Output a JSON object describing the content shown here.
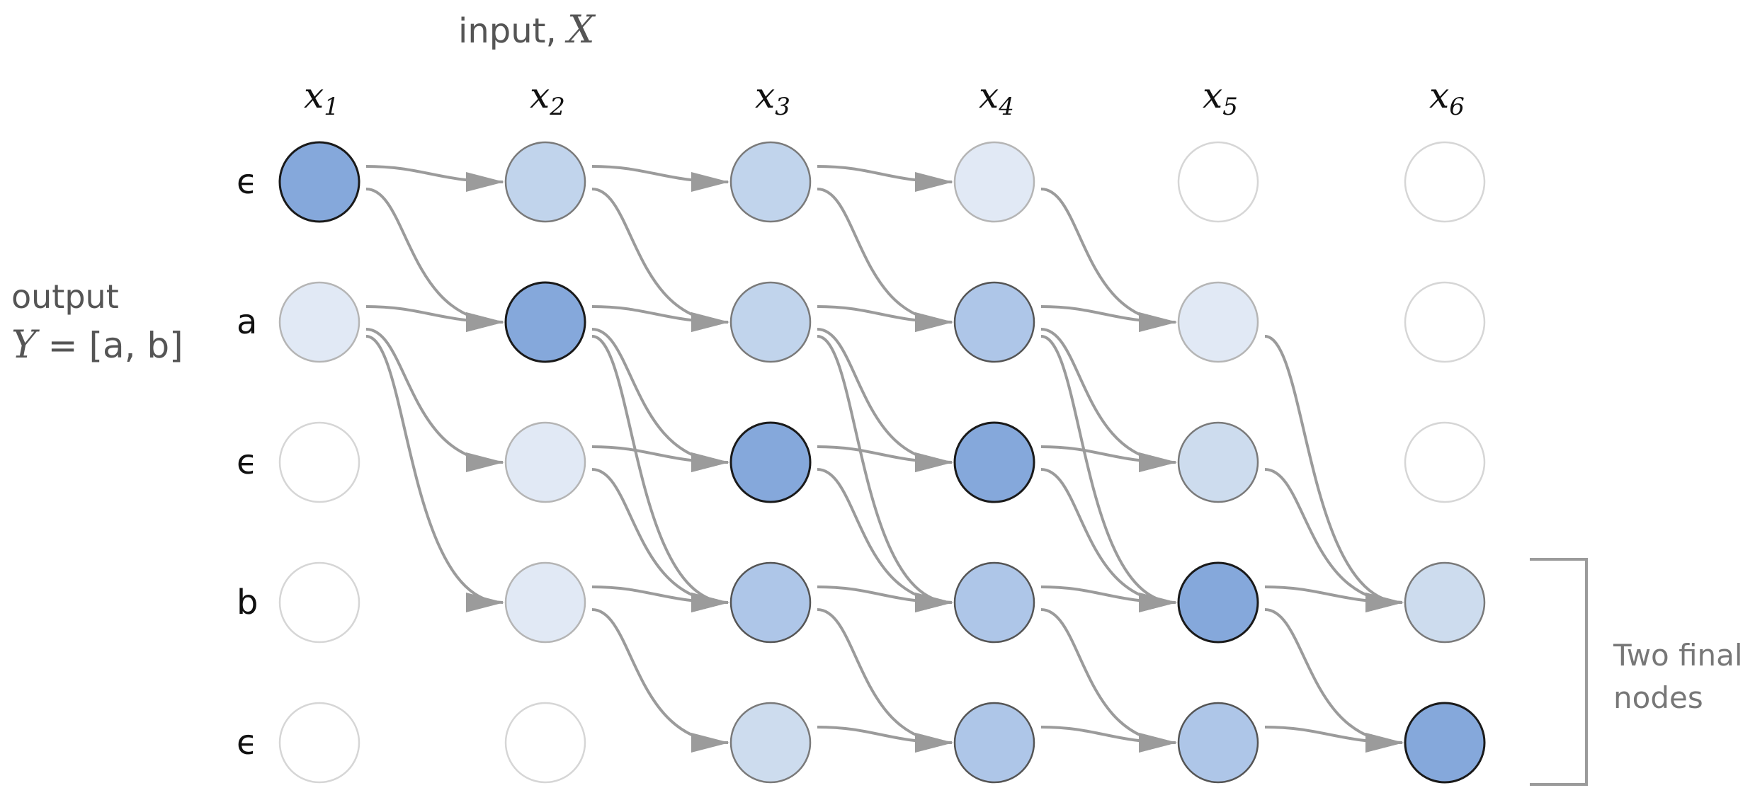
{
  "input_label": {
    "prefix": "input, ",
    "symbol": "X"
  },
  "output_label": {
    "word": "output",
    "symbol": "Y",
    "equals": "= [a, b]"
  },
  "columns": [
    {
      "base": "x",
      "sub": "1"
    },
    {
      "base": "x",
      "sub": "2"
    },
    {
      "base": "x",
      "sub": "3"
    },
    {
      "base": "x",
      "sub": "4"
    },
    {
      "base": "x",
      "sub": "5"
    },
    {
      "base": "x",
      "sub": "6"
    }
  ],
  "rows": [
    "ϵ",
    "a",
    "ϵ",
    "b",
    "ϵ"
  ],
  "final_note": {
    "line1": "Two final",
    "line2": "nodes"
  },
  "colors": {
    "edge": "#9b9b9b",
    "level_0": "#ffffff",
    "level_1": "#e1e9f5",
    "level_2": "#cddcee",
    "level_3": "#c1d4ec",
    "level_4": "#aec6e8",
    "level_5": "#85a8db"
  },
  "node_levels": [
    [
      5,
      3,
      3,
      1,
      0,
      0
    ],
    [
      1,
      5,
      3,
      4,
      1,
      0
    ],
    [
      0,
      1,
      5,
      5,
      2,
      0
    ],
    [
      0,
      1,
      4,
      4,
      5,
      2
    ],
    [
      0,
      0,
      2,
      4,
      4,
      5
    ]
  ],
  "edges": [
    [
      0,
      0,
      0,
      1
    ],
    [
      0,
      0,
      1,
      1
    ],
    [
      0,
      1,
      0,
      2
    ],
    [
      0,
      1,
      1,
      2
    ],
    [
      0,
      2,
      0,
      3
    ],
    [
      0,
      2,
      1,
      3
    ],
    [
      0,
      3,
      1,
      4
    ],
    [
      1,
      0,
      1,
      1
    ],
    [
      1,
      0,
      2,
      1
    ],
    [
      1,
      0,
      3,
      1
    ],
    [
      1,
      1,
      1,
      2
    ],
    [
      1,
      1,
      2,
      2
    ],
    [
      1,
      1,
      3,
      2
    ],
    [
      1,
      2,
      1,
      3
    ],
    [
      1,
      2,
      2,
      3
    ],
    [
      1,
      2,
      3,
      3
    ],
    [
      1,
      3,
      1,
      4
    ],
    [
      1,
      3,
      2,
      4
    ],
    [
      1,
      3,
      3,
      4
    ],
    [
      1,
      4,
      3,
      5
    ],
    [
      2,
      1,
      2,
      2
    ],
    [
      2,
      1,
      3,
      2
    ],
    [
      2,
      2,
      2,
      3
    ],
    [
      2,
      2,
      3,
      3
    ],
    [
      2,
      3,
      2,
      4
    ],
    [
      2,
      3,
      3,
      4
    ],
    [
      2,
      4,
      3,
      5
    ],
    [
      3,
      1,
      3,
      2
    ],
    [
      3,
      1,
      4,
      2
    ],
    [
      3,
      2,
      3,
      3
    ],
    [
      3,
      2,
      4,
      3
    ],
    [
      3,
      3,
      3,
      4
    ],
    [
      3,
      3,
      4,
      4
    ],
    [
      3,
      4,
      3,
      5
    ],
    [
      3,
      4,
      4,
      5
    ],
    [
      4,
      2,
      4,
      3
    ],
    [
      4,
      3,
      4,
      4
    ],
    [
      4,
      4,
      4,
      5
    ]
  ]
}
